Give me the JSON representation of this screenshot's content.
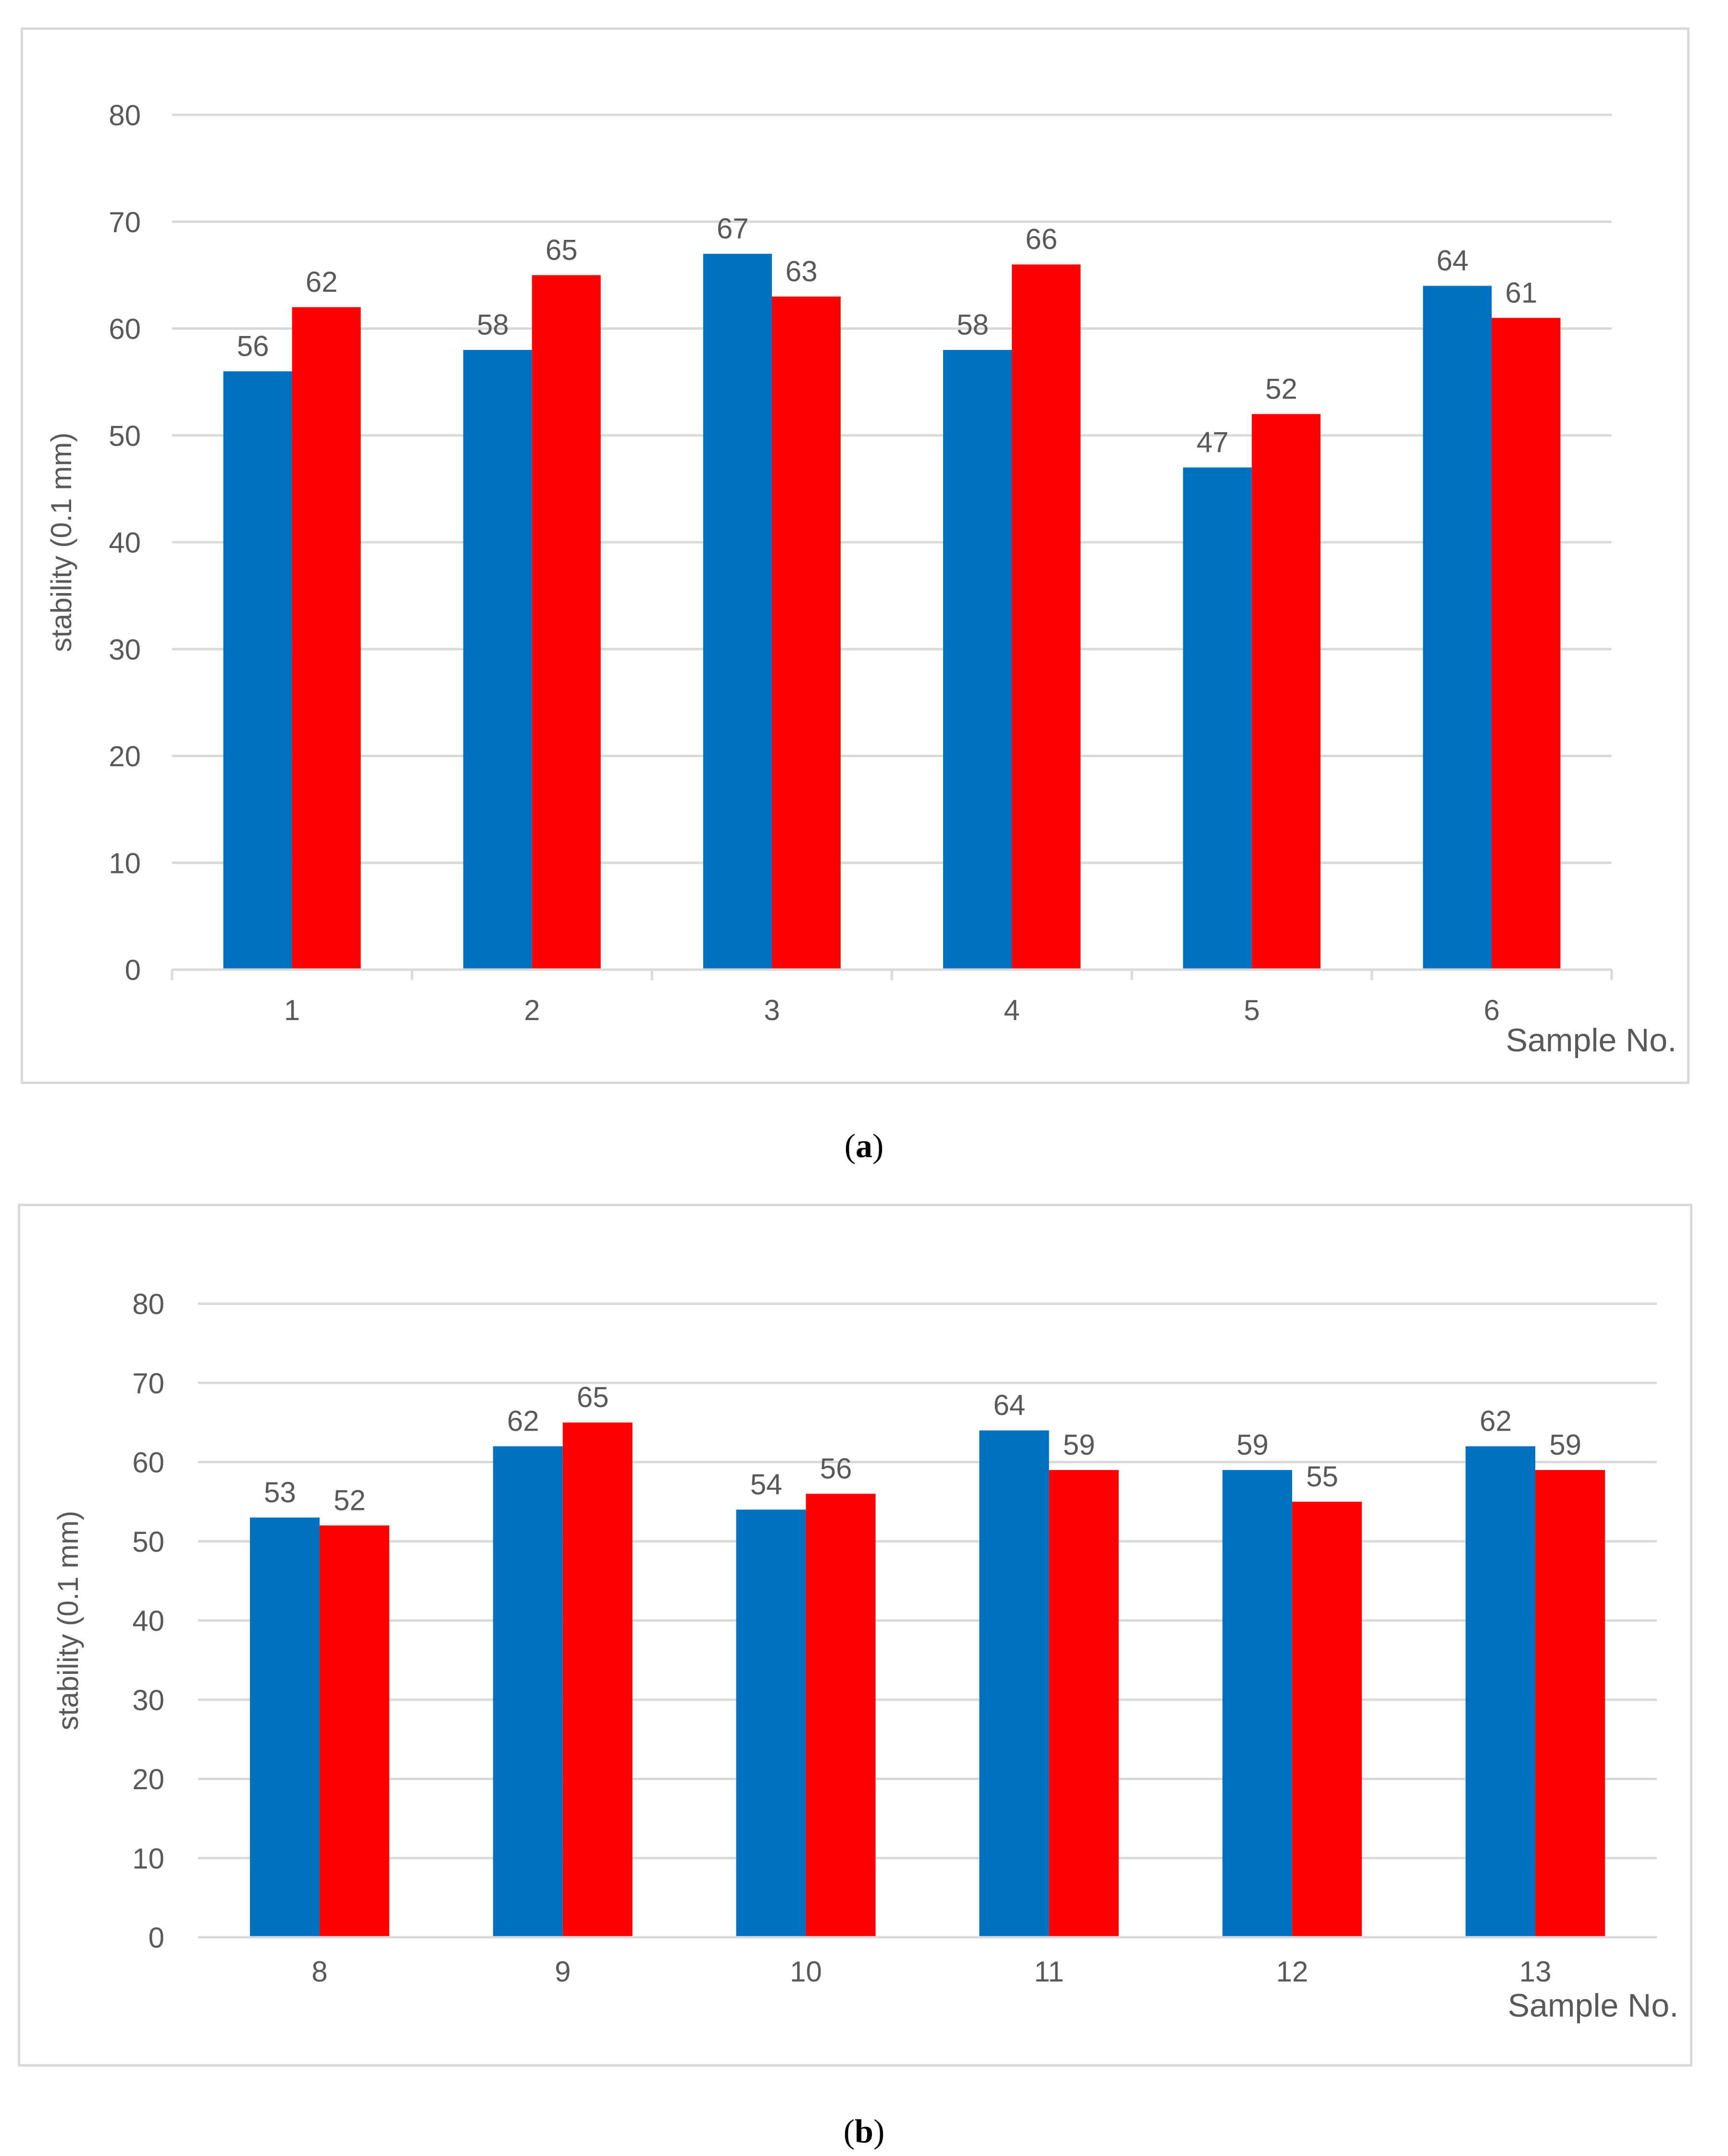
{
  "chart_data": [
    {
      "type": "bar",
      "panel": "a",
      "title": "",
      "caption_letter": "a",
      "xlabel": "Sample No.",
      "ylabel": "stability (0.1 mm)",
      "ylim": [
        0,
        80
      ],
      "yticks": [
        0,
        10,
        20,
        30,
        40,
        50,
        60,
        70,
        80
      ],
      "grid": true,
      "legend": "none",
      "categories": [
        "1",
        "2",
        "3",
        "4",
        "5",
        "6"
      ],
      "series": [
        {
          "name": "series-1",
          "color": "#0070C0",
          "values": [
            56,
            58,
            67,
            58,
            47,
            64
          ]
        },
        {
          "name": "series-2",
          "color": "#FF0000",
          "values": [
            62,
            65,
            63,
            66,
            52,
            61
          ]
        }
      ]
    },
    {
      "type": "bar",
      "panel": "b",
      "title": "",
      "caption_letter": "b",
      "xlabel": "Sample No.",
      "ylabel": "stability (0.1 mm)",
      "ylim": [
        0,
        80
      ],
      "yticks": [
        0,
        10,
        20,
        30,
        40,
        50,
        60,
        70,
        80
      ],
      "grid": true,
      "legend": "none",
      "categories": [
        "8",
        "9",
        "10",
        "11",
        "12",
        "13"
      ],
      "series": [
        {
          "name": "series-1",
          "color": "#0070C0",
          "values": [
            53,
            62,
            54,
            64,
            59,
            62
          ]
        },
        {
          "name": "series-2",
          "color": "#FF0000",
          "values": [
            52,
            65,
            56,
            59,
            55,
            59
          ]
        }
      ]
    }
  ],
  "captions": {
    "a": {
      "open": "(",
      "letter": "a",
      "close": ")"
    },
    "b": {
      "open": "(",
      "letter": "b",
      "close": ")"
    }
  }
}
